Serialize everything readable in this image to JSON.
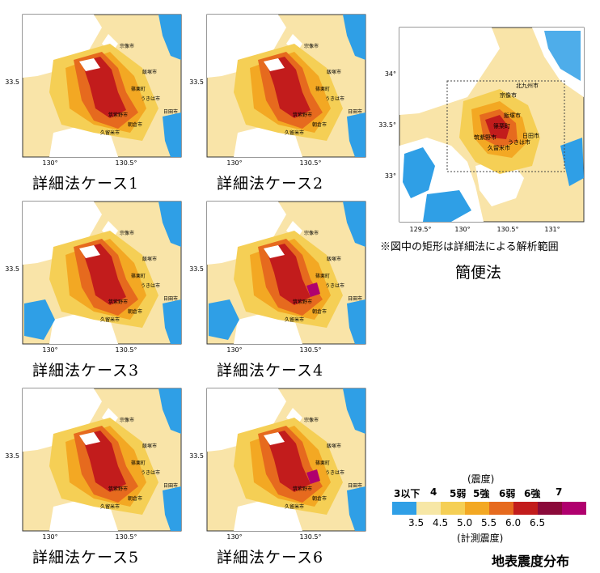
{
  "panels": [
    {
      "caption": "詳細法ケース1",
      "ytick": "33.5",
      "xticks": [
        "130°",
        "130.5°"
      ],
      "cities": [
        "宗像市",
        "飯塚市",
        "篠栗町",
        "うきは市",
        "筑紫野市",
        "久留米市",
        "朝倉市",
        "日田市"
      ]
    },
    {
      "caption": "詳細法ケース2",
      "ytick": "33.5",
      "xticks": [
        "130°",
        "130.5°"
      ],
      "cities": [
        "宗像市",
        "飯塚市",
        "篠栗町",
        "うきは市",
        "筑紫野市",
        "久留米市",
        "朝倉市",
        "日田市"
      ]
    },
    {
      "caption": "詳細法ケース3",
      "ytick": "33.5",
      "xticks": [
        "130°",
        "130.5°"
      ],
      "cities": [
        "宗像市",
        "飯塚市",
        "篠栗町",
        "うきは市",
        "筑紫野市",
        "久留米市",
        "朝倉市",
        "日田市"
      ]
    },
    {
      "caption": "詳細法ケース4",
      "ytick": "33.5",
      "xticks": [
        "130°",
        "130.5°"
      ],
      "cities": [
        "宗像市",
        "飯塚市",
        "篠栗町",
        "うきは市",
        "筑紫野市",
        "久留米市",
        "朝倉市",
        "日田市"
      ]
    },
    {
      "caption": "詳細法ケース5",
      "ytick": "33.5",
      "xticks": [
        "130°",
        "130.5°"
      ],
      "cities": [
        "宗像市",
        "飯塚市",
        "篠栗町",
        "うきは市",
        "筑紫野市",
        "久留米市",
        "朝倉市",
        "日田市"
      ]
    },
    {
      "caption": "詳細法ケース6",
      "ytick": "33.5",
      "xticks": [
        "130°",
        "130.5°"
      ],
      "cities": [
        "宗像市",
        "飯塚市",
        "篠栗町",
        "うきは市",
        "筑紫野市",
        "久留米市",
        "朝倉市",
        "日田市"
      ]
    }
  ],
  "simple_map": {
    "yticks": [
      "34°",
      "33.5°",
      "33°"
    ],
    "xticks": [
      "129.5°",
      "130°",
      "130.5°",
      "131°"
    ],
    "cities": [
      "北九州市",
      "宗像市",
      "飯塚市",
      "篠栗町",
      "筑紫野市",
      "久留米市",
      "うきは市",
      "日田市"
    ],
    "note": "※図中の矩形は詳細法による解析範囲",
    "caption": "簡便法"
  },
  "legend": {
    "unit_top": "(震度)",
    "classes": [
      "3以下",
      "4",
      "5弱",
      "5強",
      "6弱",
      "6強",
      "7"
    ],
    "values": [
      "3.5",
      "4.5",
      "5.0",
      "5.5",
      "6.0",
      "6.5"
    ],
    "unit_bottom": "(計測震度)",
    "colors": [
      "#2f9fe6",
      "#f7e7a6",
      "#f5cf55",
      "#f3a823",
      "#e66a1e",
      "#c21c1c",
      "#8b0a3a",
      "#b0006e"
    ]
  },
  "figure_title": "地表震度分布"
}
